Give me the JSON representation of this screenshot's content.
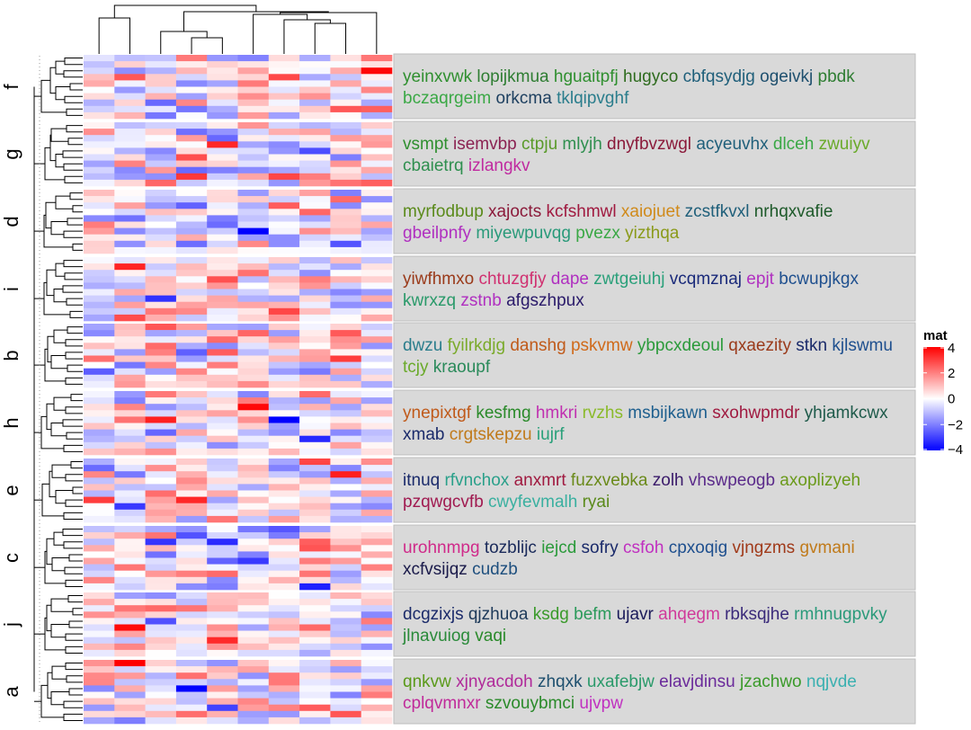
{
  "chart_data": {
    "type": "heatmap",
    "n_columns": 10,
    "rows_per_group": 10,
    "color_scale": {
      "min": -4,
      "mid": 0,
      "max": 4,
      "low_color": "#0000ff",
      "mid_color": "#ffffff",
      "high_color": "#ff0000"
    },
    "legend": {
      "title": "mat",
      "ticks": [
        4,
        2,
        0,
        -2,
        -4
      ],
      "tick_labels": [
        "4",
        "2",
        "0",
        "−2",
        "−4"
      ],
      "placement": "right"
    },
    "panel_fill": "#d9d9d9",
    "groups": [
      {
        "label": "f",
        "words": [
          {
            "text": "yeinxvwk",
            "color": "#2f8f2f"
          },
          {
            "text": "lopijkmua",
            "color": "#2e7d32"
          },
          {
            "text": "hguaitpfj",
            "color": "#2f8f2f"
          },
          {
            "text": "hugyco",
            "color": "#2e6b1e"
          },
          {
            "text": "cbfqsydjg",
            "color": "#1f5f7a"
          },
          {
            "text": "ogeivkj",
            "color": "#1e4f6e"
          },
          {
            "text": "pbdk",
            "color": "#2e7d32"
          },
          {
            "text": "bczaqrgeim",
            "color": "#3aa845"
          },
          {
            "text": "orkcma",
            "color": "#1e4060"
          },
          {
            "text": "tklqipvghf",
            "color": "#2a7d8c"
          }
        ]
      },
      {
        "label": "g",
        "words": [
          {
            "text": "vsmpt",
            "color": "#2f8f2f"
          },
          {
            "text": "isemvbp",
            "color": "#8b2252"
          },
          {
            "text": "ctpju",
            "color": "#5a9a2a"
          },
          {
            "text": "mlyjh",
            "color": "#2f8f4f"
          },
          {
            "text": "dnyfbvzwgl",
            "color": "#8b1a3a"
          },
          {
            "text": "acyeuvhx",
            "color": "#1f5f7a"
          },
          {
            "text": "dlceh",
            "color": "#3aa845"
          },
          {
            "text": "zwuiyv",
            "color": "#6aaa2a"
          },
          {
            "text": "cbaietrq",
            "color": "#2f8f4f"
          },
          {
            "text": "izlangkv",
            "color": "#c02aa0"
          }
        ]
      },
      {
        "label": "d",
        "words": [
          {
            "text": "myrfodbup",
            "color": "#5a8a1a"
          },
          {
            "text": "xajocts",
            "color": "#8b1a3a"
          },
          {
            "text": "kcfshmwl",
            "color": "#a01a40"
          },
          {
            "text": "xaiojuet",
            "color": "#d08a1a"
          },
          {
            "text": "zcstfkvxl",
            "color": "#1f5f7a"
          },
          {
            "text": "nrhqxvafie",
            "color": "#1e5a2a"
          },
          {
            "text": "gbeilpnfy",
            "color": "#b030c0"
          },
          {
            "text": "miyewpuvqg",
            "color": "#2a9a7a"
          },
          {
            "text": "pvezx",
            "color": "#3aa845"
          },
          {
            "text": "yizthqa",
            "color": "#8a9a1a"
          }
        ]
      },
      {
        "label": "i",
        "words": [
          {
            "text": "yiwfhmxo",
            "color": "#9a3a1a"
          },
          {
            "text": "chtuzgfjy",
            "color": "#d03070"
          },
          {
            "text": "dape",
            "color": "#b030c0"
          },
          {
            "text": "zwtgeiuhj",
            "color": "#2aa07a"
          },
          {
            "text": "vcqmznaj",
            "color": "#1a2a7a"
          },
          {
            "text": "epjt",
            "color": "#b030c0"
          },
          {
            "text": "bcwupjkgx",
            "color": "#1e4f8e"
          },
          {
            "text": "kwrxzq",
            "color": "#2a9a6a"
          },
          {
            "text": "zstnb",
            "color": "#b030c0"
          },
          {
            "text": "afgszhpux",
            "color": "#2a1a6a"
          }
        ]
      },
      {
        "label": "b",
        "words": [
          {
            "text": "dwzu",
            "color": "#2a7d8c"
          },
          {
            "text": "fyilrkdjg",
            "color": "#7aaa2a"
          },
          {
            "text": "danshg",
            "color": "#c05a1a"
          },
          {
            "text": "pskvmw",
            "color": "#d06a1a"
          },
          {
            "text": "ybpcxdeoul",
            "color": "#2a9a3a"
          },
          {
            "text": "qxaezity",
            "color": "#9a3a1a"
          },
          {
            "text": "stkn",
            "color": "#1a2a6a"
          },
          {
            "text": "kjlswmu",
            "color": "#1e4f8e"
          },
          {
            "text": "tcjy",
            "color": "#6aaa2a"
          },
          {
            "text": "kraoupf",
            "color": "#2a8a5a"
          }
        ]
      },
      {
        "label": "h",
        "words": [
          {
            "text": "ynepixtgf",
            "color": "#c05a1a"
          },
          {
            "text": "kesfmg",
            "color": "#2a8a2a"
          },
          {
            "text": "hmkri",
            "color": "#c030b0"
          },
          {
            "text": "rvzhs",
            "color": "#8aba2a"
          },
          {
            "text": "msbijkawn",
            "color": "#1e5f8e"
          },
          {
            "text": "sxohwpmdr",
            "color": "#a01a40"
          },
          {
            "text": "yhjamkcwx",
            "color": "#1e5a4a"
          },
          {
            "text": "xmab",
            "color": "#1a2a6a"
          },
          {
            "text": "crgtskepzu",
            "color": "#c07a1a"
          },
          {
            "text": "iujrf",
            "color": "#2aa07a"
          }
        ]
      },
      {
        "label": "e",
        "words": [
          {
            "text": "itnuq",
            "color": "#1a2a6a"
          },
          {
            "text": "rfvnchox",
            "color": "#2aa08a"
          },
          {
            "text": "anxmrt",
            "color": "#a01a40"
          },
          {
            "text": "fuzxvebka",
            "color": "#6a8a1a"
          },
          {
            "text": "zolh",
            "color": "#3a1a6a"
          },
          {
            "text": "vhswpeogb",
            "color": "#5a2a8a"
          },
          {
            "text": "axoplizyeh",
            "color": "#6a9a1a"
          },
          {
            "text": "pzqwgcvfb",
            "color": "#a01a50"
          },
          {
            "text": "cwyfevmalh",
            "color": "#3ab0a0"
          },
          {
            "text": "ryai",
            "color": "#5a8a1a"
          }
        ]
      },
      {
        "label": "c",
        "words": [
          {
            "text": "urohnmpg",
            "color": "#d02a8a"
          },
          {
            "text": "tozblijc",
            "color": "#1a2a5a"
          },
          {
            "text": "iejcd",
            "color": "#2a9a3a"
          },
          {
            "text": "sofry",
            "color": "#1a2a6a"
          },
          {
            "text": "csfoh",
            "color": "#c030c0"
          },
          {
            "text": "cpxoqig",
            "color": "#1e4f8e"
          },
          {
            "text": "vjngzms",
            "color": "#a03a1a"
          },
          {
            "text": "gvmani",
            "color": "#c07a1a"
          },
          {
            "text": "xcfvsijqz",
            "color": "#1a1a4a"
          },
          {
            "text": "cudzb",
            "color": "#1e4f7e"
          }
        ]
      },
      {
        "label": "j",
        "words": [
          {
            "text": "dcgzixjs",
            "color": "#1a2a6a"
          },
          {
            "text": "qjzhuoa",
            "color": "#1e3a5a"
          },
          {
            "text": "ksdg",
            "color": "#3a9a2a"
          },
          {
            "text": "befm",
            "color": "#2a9a5a"
          },
          {
            "text": "ujavr",
            "color": "#1a1a5a"
          },
          {
            "text": "ahqegm",
            "color": "#d03a9a"
          },
          {
            "text": "rbksqjhe",
            "color": "#3a2a7a"
          },
          {
            "text": "rmhnugpvky",
            "color": "#2a9a7a"
          },
          {
            "text": "jlnavuiog",
            "color": "#2a8a3a"
          },
          {
            "text": "vaqi",
            "color": "#2a8a2a"
          }
        ]
      },
      {
        "label": "a",
        "words": [
          {
            "text": "qnkvw",
            "color": "#5a9a1a"
          },
          {
            "text": "xjnyacdoh",
            "color": "#b02a9a"
          },
          {
            "text": "zhqxk",
            "color": "#1e4f6e"
          },
          {
            "text": "uxafebjw",
            "color": "#2a9a6a"
          },
          {
            "text": "elavjdinsu",
            "color": "#6a2a9a"
          },
          {
            "text": "jzachwo",
            "color": "#3a9a2a"
          },
          {
            "text": "nqjvde",
            "color": "#3ab0b0"
          },
          {
            "text": "cplqvmnxr",
            "color": "#c02a9a"
          },
          {
            "text": "szvouybmci",
            "color": "#2a8a2a"
          },
          {
            "text": "ujvpw",
            "color": "#c030c0"
          }
        ]
      }
    ]
  }
}
